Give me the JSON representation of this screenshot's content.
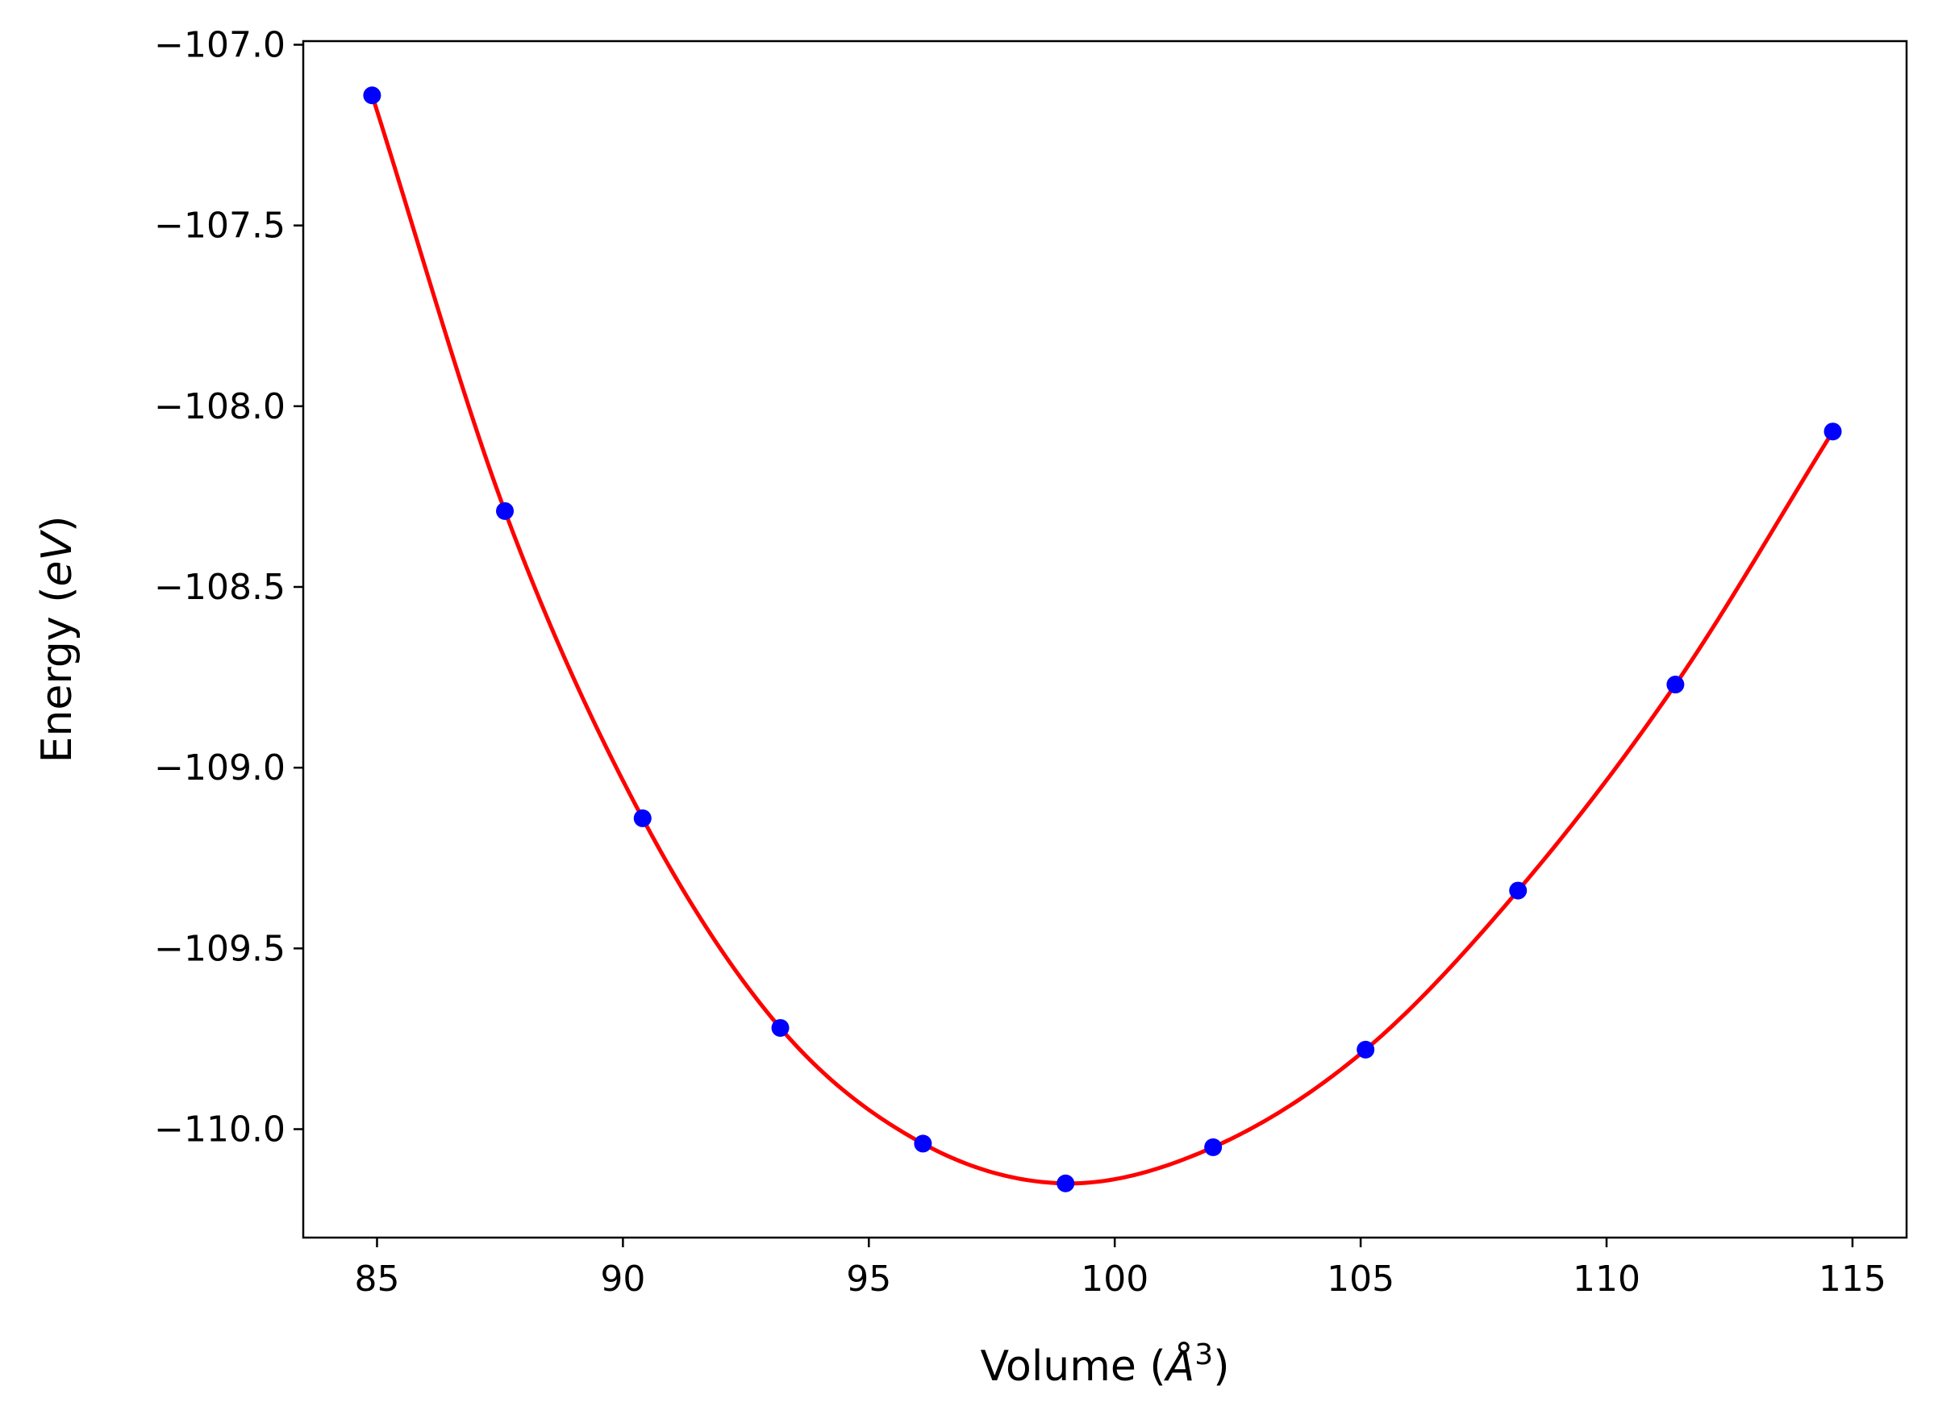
{
  "chart_data": {
    "type": "scatter",
    "title": "",
    "xlabel": {
      "prefix": "Volume (",
      "var": "Å",
      "sup": "3",
      "suffix": ")"
    },
    "ylabel": {
      "prefix": "Energy (",
      "var": "eV",
      "suffix": ")"
    },
    "xlim": [
      83.5,
      116.1
    ],
    "ylim": [
      -110.3,
      -106.99
    ],
    "xticks": [
      85,
      90,
      95,
      100,
      105,
      110,
      115
    ],
    "xtick_labels": [
      "85",
      "90",
      "95",
      "100",
      "105",
      "110",
      "115"
    ],
    "yticks": [
      -107.0,
      -107.5,
      -108.0,
      -108.5,
      -109.0,
      -109.5,
      -110.0
    ],
    "ytick_labels": [
      "−107.0",
      "−107.5",
      "−108.0",
      "−108.5",
      "−109.0",
      "−109.5",
      "−110.0"
    ],
    "grid": false,
    "series": [
      {
        "kind": "points",
        "color": "#0000ff",
        "x": [
          84.9,
          87.6,
          90.4,
          93.2,
          96.1,
          99.0,
          102.0,
          105.1,
          108.2,
          111.4,
          114.6
        ],
        "y": [
          -107.14,
          -108.29,
          -109.14,
          -109.72,
          -110.04,
          -110.15,
          -110.05,
          -109.78,
          -109.34,
          -108.77,
          -108.07
        ]
      },
      {
        "kind": "fit",
        "color": "#ff0000"
      }
    ]
  }
}
